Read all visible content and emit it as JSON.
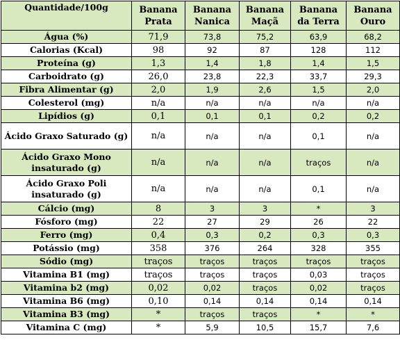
{
  "table": {
    "headers": [
      "Quantidade/100g",
      "Banana Prata",
      "Banana Nanica",
      "Banana Maçã",
      "Banana da Terra",
      "Banana Ouro"
    ],
    "header_bg_color": "#d8e8bf",
    "alt_row_bg_color": "#d8e8bf",
    "rows": [
      {
        "label": "Água (%)",
        "values": [
          "71,9",
          "73,8",
          "75,2",
          "63,9",
          "68,2"
        ]
      },
      {
        "label": "Calorias (Kcal)",
        "values": [
          "98",
          "92",
          "87",
          "128",
          "112"
        ]
      },
      {
        "label": "Proteína (g)",
        "values": [
          "1,3",
          "1,4",
          "1,8",
          "1,4",
          "1,5"
        ]
      },
      {
        "label": "Carboidrato (g)",
        "values": [
          "26,0",
          "23,8",
          "22,3",
          "33,7",
          "29,3"
        ]
      },
      {
        "label": "Fibra Alimentar (g)",
        "values": [
          "2,0",
          "1,9",
          "2,6",
          "1,5",
          "2,0"
        ]
      },
      {
        "label": "Colesterol (mg)",
        "values": [
          "n/a",
          "n/a",
          "n/a",
          "n/a",
          "n/a"
        ]
      },
      {
        "label": "Lipídios (g)",
        "values": [
          "0,1",
          "0,1",
          "0,1",
          "0,2",
          "0,2"
        ]
      },
      {
        "label": "Ácido Graxo Saturado (g)",
        "values": [
          "n/a",
          "n/a",
          "n/a",
          "0,1",
          "n/a"
        ]
      },
      {
        "label": "Ácido Graxo Mono insaturado (g)",
        "values": [
          "n/a",
          "n/a",
          "n/a",
          "traços",
          "n/a"
        ]
      },
      {
        "label": "Ácido Graxo Poli insaturado (g)",
        "values": [
          "n/a",
          "n/a",
          "n/a",
          "0,1",
          "n/a"
        ]
      },
      {
        "label": "Cálcio (mg)",
        "values": [
          "8",
          "3",
          "3",
          "*",
          "3"
        ]
      },
      {
        "label": "Fósforo (mg)",
        "values": [
          "22",
          "27",
          "29",
          "26",
          "22"
        ]
      },
      {
        "label": "Ferro (mg)",
        "values": [
          "0,4",
          "0,3",
          "0,2",
          "0,3",
          "0,3"
        ]
      },
      {
        "label": "Potássio (mg)",
        "values": [
          "358",
          "376",
          "264",
          "328",
          "355"
        ]
      },
      {
        "label": "Sódio (mg)",
        "values": [
          "traços",
          "traços",
          "traços",
          "traços",
          "traços"
        ]
      },
      {
        "label": "Vitamina B1 (mg)",
        "values": [
          "traços",
          "traços",
          "traços",
          "0,03",
          "traços"
        ]
      },
      {
        "label": "Vitamina b2 (mg)",
        "values": [
          "0,02",
          "0,02",
          "traços",
          "0,02",
          "traços"
        ]
      },
      {
        "label": "Vitamina B6 (mg)",
        "values": [
          "0,10",
          "0,14",
          "0,14",
          "0,14",
          "0,14"
        ]
      },
      {
        "label": "Vitamina B3 (mg)",
        "values": [
          "*",
          "traços",
          "traços",
          "*",
          "*"
        ]
      },
      {
        "label": "Vitamina C (mg)",
        "values": [
          "*",
          "5,9",
          "10,5",
          "15,7",
          "7,6"
        ]
      }
    ]
  }
}
